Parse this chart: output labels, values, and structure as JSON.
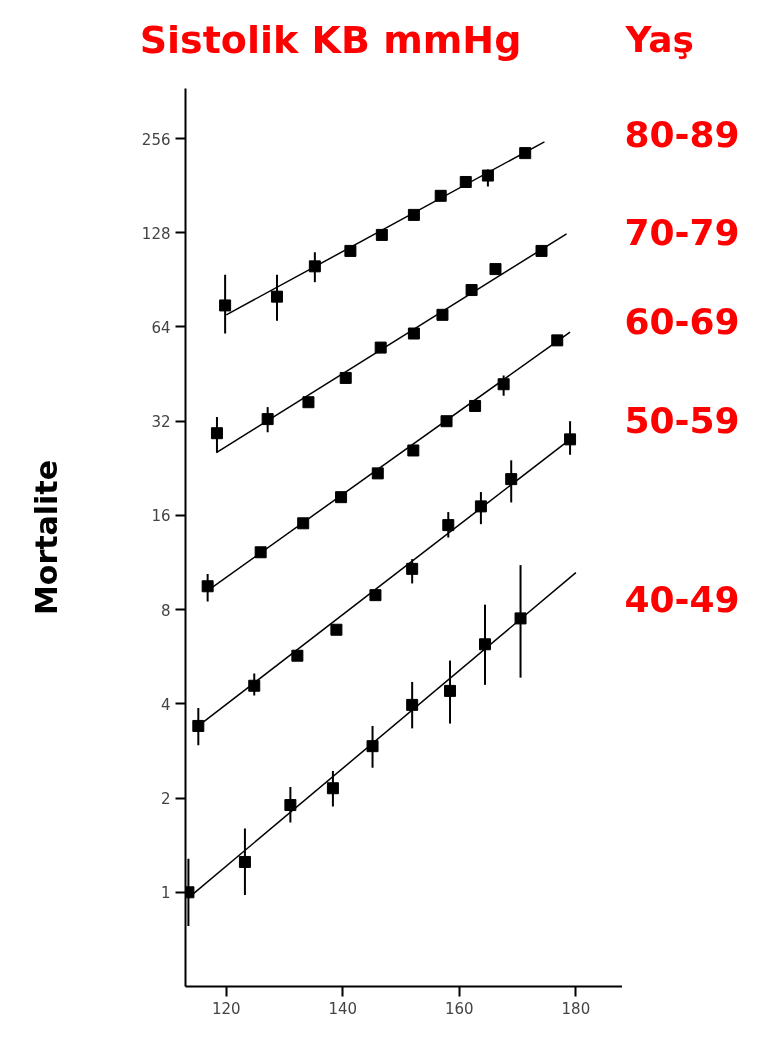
{
  "chart_data": {
    "type": "scatter",
    "title": "Sistolik KB mmHg",
    "ylabel": "Mortalite",
    "legend_title": "Yaş",
    "log": "y",
    "marker": "square",
    "grid": false,
    "xlim": [
      113,
      188
    ],
    "xticks": [
      120,
      140,
      160,
      180
    ],
    "ylim": [
      0.5,
      370
    ],
    "yticks": [
      1,
      2,
      4,
      8,
      16,
      32,
      64,
      128,
      256
    ],
    "series": [
      {
        "name": "80-89",
        "color": "#000000",
        "x": [
          119.8,
          128.7,
          135.2,
          141.3,
          146.7,
          152.2,
          156.8,
          161.1,
          164.9,
          171.3
        ],
        "values": [
          75,
          80,
          100,
          112,
          126,
          146,
          168,
          186,
          195,
          230
        ],
        "errors": [
          [
            61,
            94
          ],
          [
            67,
            94
          ],
          [
            89,
            111
          ],
          null,
          null,
          null,
          null,
          null,
          [
            180,
            204
          ],
          null
        ]
      },
      {
        "type": "line",
        "marker": "none",
        "color": "#000000",
        "x": [
          120,
          174.6
        ],
        "values": [
          70,
          250
        ]
      },
      {
        "name": "70-79",
        "color": "#000000",
        "x": [
          118.4,
          127.1,
          134.1,
          140.5,
          146.5,
          152.2,
          157.1,
          162.1,
          166.2,
          174.1
        ],
        "values": [
          29.3,
          32.5,
          36.8,
          44,
          55,
          61,
          70,
          84,
          98,
          112
        ],
        "errors": [
          [
            25.4,
            33
          ],
          [
            29.5,
            35.5
          ],
          null,
          null,
          null,
          null,
          null,
          null,
          null,
          null
        ]
      },
      {
        "type": "line",
        "marker": "none",
        "color": "#000000",
        "x": [
          118.3,
          178.4
        ],
        "values": [
          25.4,
          127
        ]
      },
      {
        "name": "60-69",
        "color": "#000000",
        "x": [
          116.8,
          125.9,
          133.2,
          139.7,
          146,
          152.1,
          157.8,
          162.7,
          167.6,
          176.8
        ],
        "values": [
          9.5,
          12.2,
          15.1,
          18.3,
          21.8,
          25.8,
          32,
          35.8,
          42,
          58
        ],
        "errors": [
          [
            8.5,
            10.4
          ],
          null,
          null,
          null,
          null,
          null,
          null,
          null,
          [
            38.6,
            44.8
          ],
          null
        ]
      },
      {
        "type": "line",
        "marker": "none",
        "color": "#000000",
        "x": [
          116.8,
          179
        ],
        "values": [
          9.2,
          61.6
        ]
      },
      {
        "name": "50-59",
        "color": "#000000",
        "x": [
          115.2,
          124.8,
          132.2,
          138.9,
          145.6,
          151.9,
          158.1,
          163.7,
          168.9,
          179
        ],
        "values": [
          3.4,
          4.57,
          5.7,
          6.9,
          8.9,
          10.8,
          14.9,
          17.1,
          20.9,
          28
        ],
        "errors": [
          [
            2.95,
            3.88
          ],
          [
            4.25,
            5.0
          ],
          null,
          null,
          null,
          [
            9.7,
            11.6
          ],
          [
            13.6,
            16.4
          ],
          [
            15,
            19
          ],
          [
            17.6,
            24
          ],
          [
            25,
            32
          ]
        ]
      },
      {
        "type": "line",
        "marker": "none",
        "color": "#000000",
        "x": [
          115.2,
          179
        ],
        "values": [
          3.4,
          28
        ]
      },
      {
        "name": "40-49",
        "color": "#000000",
        "x": [
          113.5,
          123.2,
          131,
          138.3,
          145.1,
          151.9,
          158.4,
          164.4,
          170.5
        ],
        "values": [
          1.0,
          1.25,
          1.9,
          2.15,
          2.93,
          3.97,
          4.4,
          6.2,
          7.5
        ],
        "errors": [
          [
            0.78,
            1.28
          ],
          [
            0.98,
            1.6
          ],
          [
            1.67,
            2.17
          ],
          [
            1.88,
            2.44
          ],
          [
            2.5,
            3.4
          ],
          [
            3.34,
            4.7
          ],
          [
            3.46,
            5.5
          ],
          [
            4.6,
            8.3
          ],
          [
            4.85,
            11.1
          ]
        ]
      },
      {
        "type": "line",
        "marker": "none",
        "color": "#000000",
        "x": [
          113.5,
          180
        ],
        "values": [
          0.96,
          10.5
        ]
      }
    ]
  }
}
